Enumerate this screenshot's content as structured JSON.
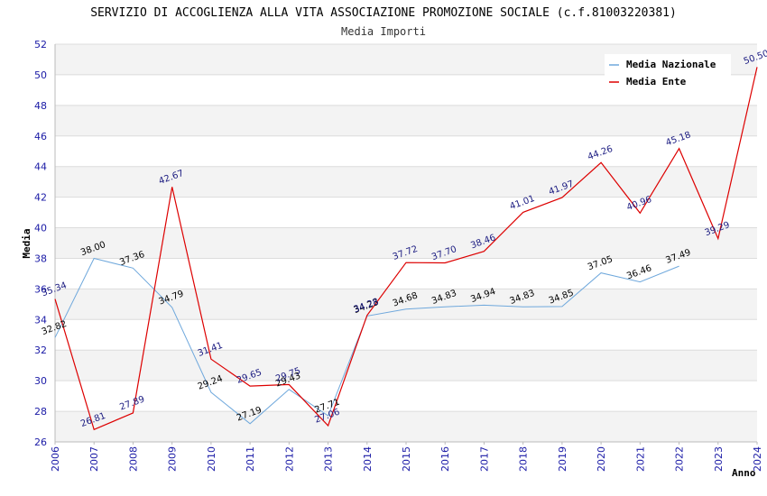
{
  "chart_data": {
    "type": "line",
    "title": "SERVIZIO DI ACCOGLIENZA ALLA VITA ASSOCIAZIONE PROMOZIONE SOCIALE (c.f.81003220381)",
    "subtitle": "Media Importi",
    "xlabel": "Anno",
    "ylabel": "Media",
    "ylim": [
      26,
      52
    ],
    "yticks": [
      26,
      28,
      30,
      32,
      34,
      36,
      38,
      40,
      42,
      44,
      46,
      48,
      50,
      52
    ],
    "x": [
      "2006",
      "2007",
      "2008",
      "2009",
      "2010",
      "2011",
      "2012",
      "2013",
      "2014",
      "2015",
      "2016",
      "2017",
      "2018",
      "2019",
      "2020",
      "2021",
      "2022",
      "2023",
      "2024"
    ],
    "grid": true,
    "legend_position": "top-right",
    "series": [
      {
        "name": "Media Nazionale",
        "color": "#6fa8dc",
        "label_color": "#000000",
        "values": [
          32.82,
          38.0,
          37.36,
          34.79,
          29.24,
          27.19,
          29.43,
          27.71,
          34.23,
          34.68,
          34.83,
          34.94,
          34.83,
          34.85,
          37.05,
          36.46,
          37.49,
          null,
          null
        ],
        "labels": [
          "32.82",
          "38.00",
          "37.36",
          "34.79",
          "29.24",
          "27.19",
          "29.43",
          "27.71",
          "34.23",
          "34.68",
          "34.83",
          "34.94",
          "34.83",
          "34.85",
          "37.05",
          "36.46",
          "37.49",
          "",
          ""
        ]
      },
      {
        "name": "Media Ente",
        "color": "#dd0000",
        "label_color": "#1a1a80",
        "values": [
          35.34,
          26.81,
          27.89,
          42.67,
          31.41,
          29.65,
          29.75,
          27.06,
          34.28,
          37.72,
          37.7,
          38.46,
          41.01,
          41.97,
          44.26,
          40.96,
          45.18,
          39.29,
          50.5
        ],
        "labels": [
          "35.34",
          "26.81",
          "27.89",
          "42.67",
          "31.41",
          "29.65",
          "29.75",
          "27.06",
          "34.28",
          "37.72",
          "37.70",
          "38.46",
          "41.01",
          "41.97",
          "44.26",
          "40.96",
          "45.18",
          "39.29",
          "50.50"
        ]
      }
    ]
  }
}
